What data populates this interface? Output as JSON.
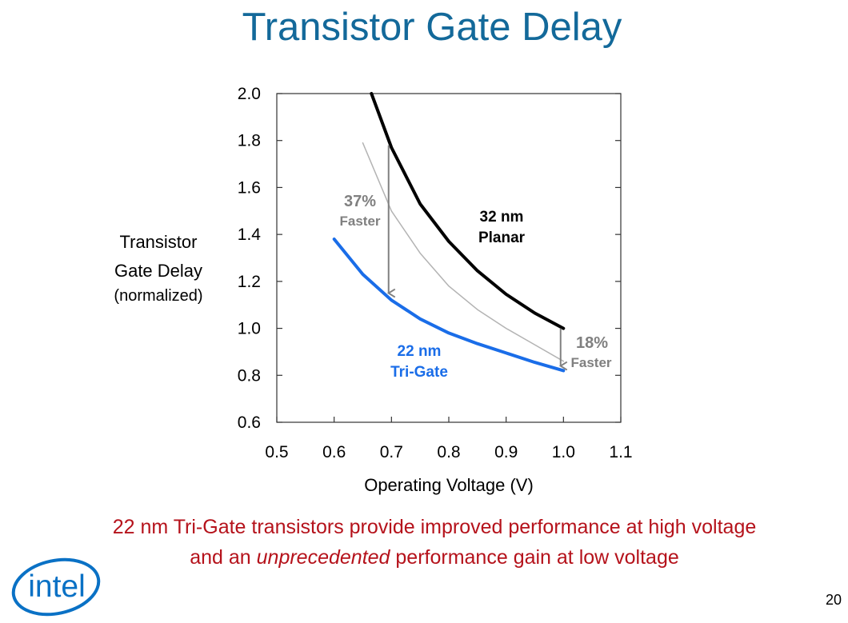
{
  "title": "Transistor Gate Delay",
  "y_axis_label": {
    "line1": "Transistor",
    "line2": "Gate Delay",
    "line3": "(normalized)"
  },
  "x_axis_label": "Operating Voltage (V)",
  "caption": {
    "line1": "22 nm Tri-Gate transistors provide improved performance at high voltage",
    "line2_before": "and an ",
    "line2_emphasis": "unprecedented",
    "line2_after": " performance gain at low voltage"
  },
  "logo_text": "intel",
  "page_number": "20",
  "colors": {
    "title": "#13699a",
    "caption": "#b5121b",
    "tri_gate": "#1a6de8",
    "planar": "#000000",
    "reference": "#b3b3b3",
    "annotation": "#808080"
  },
  "chart_data": {
    "type": "line",
    "xlim": [
      0.5,
      1.1
    ],
    "ylim": [
      0.6,
      2.0
    ],
    "x_ticks": [
      "0.5",
      "0.6",
      "0.7",
      "0.8",
      "0.9",
      "1.0",
      "1.1"
    ],
    "y_ticks": [
      "0.6",
      "0.8",
      "1.0",
      "1.2",
      "1.4",
      "1.6",
      "1.8",
      "2.0"
    ],
    "grid": false,
    "series": [
      {
        "label_line1": "32 nm",
        "label_line2": "Planar",
        "color": "#000000",
        "x": [
          0.665,
          0.7,
          0.75,
          0.8,
          0.85,
          0.9,
          0.95,
          1.0
        ],
        "y": [
          2.0,
          1.77,
          1.53,
          1.37,
          1.245,
          1.145,
          1.065,
          1.0
        ]
      },
      {
        "label_line1": "22 nm",
        "label_line2": "Tri-Gate",
        "color": "#1a6de8",
        "x": [
          0.6,
          0.65,
          0.7,
          0.75,
          0.8,
          0.85,
          0.9,
          0.95,
          1.0
        ],
        "y": [
          1.38,
          1.23,
          1.12,
          1.04,
          0.98,
          0.935,
          0.895,
          0.855,
          0.82
        ]
      },
      {
        "color": "#b3b3b3",
        "x": [
          0.65,
          0.7,
          0.75,
          0.8,
          0.85,
          0.9,
          0.95,
          1.0
        ],
        "y": [
          1.79,
          1.5,
          1.32,
          1.18,
          1.08,
          1.0,
          0.93,
          0.86
        ]
      }
    ],
    "annotations": [
      {
        "value": "37%",
        "text": "Faster",
        "x": 0.695,
        "y_from": 1.78,
        "y_to": 1.15
      },
      {
        "value": "18%",
        "text": "Faster",
        "x": 0.995,
        "y_from": 1.0,
        "y_to": 0.84
      }
    ]
  }
}
